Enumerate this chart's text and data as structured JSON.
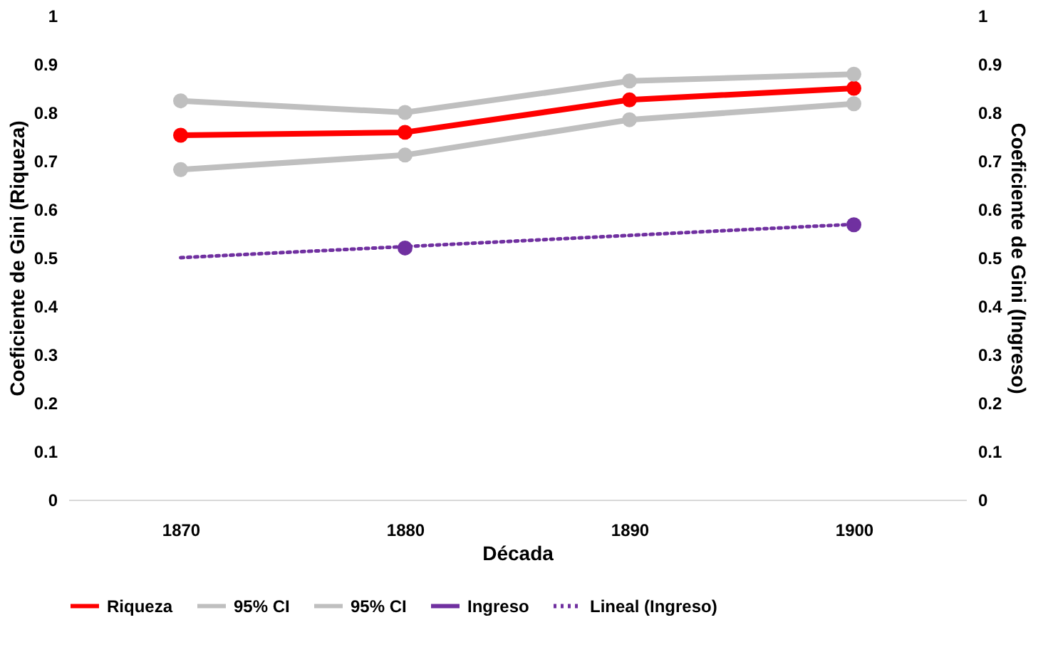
{
  "chart_data": {
    "type": "line",
    "xlabel": "Década",
    "ylabel": "Coeficiente de Gini (Riqueza)",
    "y2label": "Coeficiente de Gini (Ingreso)",
    "categories": [
      "1870",
      "1880",
      "1890",
      "1900"
    ],
    "series": [
      {
        "name": "Riqueza",
        "color": "#ff0000",
        "values": [
          0.753,
          0.759,
          0.826,
          0.85
        ],
        "marker": "circle",
        "line_style": "solid"
      },
      {
        "name": "95% CI",
        "color": "#bfbfbf",
        "values": [
          0.824,
          0.8,
          0.865,
          0.879
        ],
        "marker": "circle",
        "line_style": "solid"
      },
      {
        "name": "95% CI",
        "color": "#bfbfbf",
        "values": [
          0.682,
          0.712,
          0.785,
          0.818
        ],
        "marker": "circle",
        "line_style": "solid"
      },
      {
        "name": "Ingreso",
        "type": "scatter",
        "color": "#7030a0",
        "values": [
          null,
          0.52,
          null,
          0.568
        ],
        "marker": "circle",
        "axis": "y2"
      },
      {
        "name": "Lineal (Ingreso)",
        "color": "#7030a0",
        "values": [
          0.5,
          0.523,
          0.546,
          0.569
        ],
        "marker": "none",
        "line_style": "dotted",
        "axis": "y2"
      }
    ],
    "ylim": [
      0,
      1
    ],
    "yticks": [
      0,
      0.1,
      0.2,
      0.3,
      0.4,
      0.5,
      0.6,
      0.7,
      0.8,
      0.9,
      1
    ],
    "y2lim": [
      0,
      1
    ],
    "y2ticks": [
      0,
      0.1,
      0.2,
      0.3,
      0.4,
      0.5,
      0.6,
      0.7,
      0.8,
      0.9,
      1
    ],
    "grid": false,
    "legend": "bottom"
  }
}
